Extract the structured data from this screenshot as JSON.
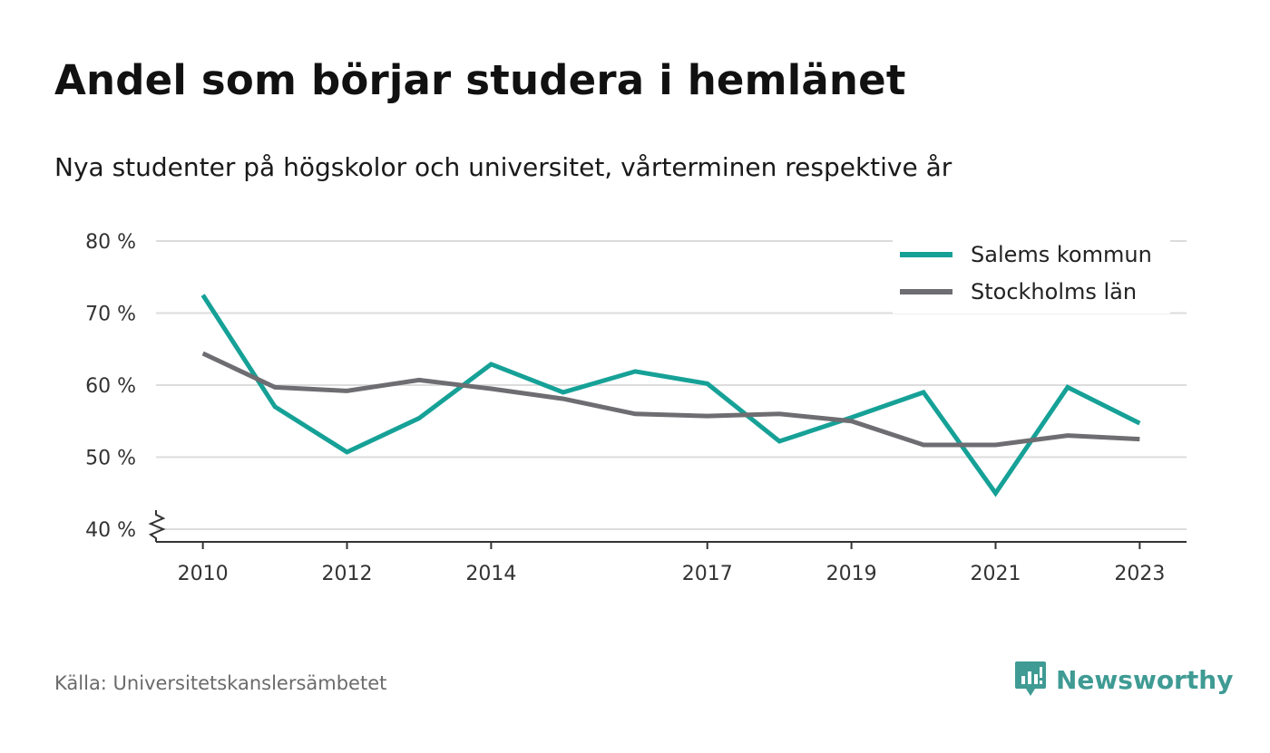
{
  "title": "Andel som börjar studera i hemlänet",
  "subtitle": "Nya studenter på högskolor och universitet, vårterminen respektive år",
  "source": "Källa: Universitetskanslersämbetet",
  "brand": {
    "name": "Newsworthy",
    "icon": "newsworthy-logo-icon",
    "color": "#3f9b94"
  },
  "chart_data": {
    "type": "line",
    "y_ticks": [
      {
        "value": 40,
        "label": "40 %"
      },
      {
        "value": 50,
        "label": "50 %"
      },
      {
        "value": 60,
        "label": "60 %"
      },
      {
        "value": 70,
        "label": "70 %"
      },
      {
        "value": 80,
        "label": "80 %"
      }
    ],
    "x_ticks": [
      {
        "value": 2010,
        "label": "2010"
      },
      {
        "value": 2012,
        "label": "2012"
      },
      {
        "value": 2014,
        "label": "2014"
      },
      {
        "value": 2017,
        "label": "2017"
      },
      {
        "value": 2019,
        "label": "2019"
      },
      {
        "value": 2021,
        "label": "2021"
      },
      {
        "value": 2023,
        "label": "2023"
      }
    ],
    "xlim": [
      2009.35,
      2023.65
    ],
    "ylim": [
      40,
      80
    ],
    "axis_break": true,
    "grid": "horizontal",
    "legend_position": "top-right",
    "x": [
      2010,
      2011,
      2012,
      2013,
      2014,
      2015,
      2016,
      2017,
      2018,
      2019,
      2020,
      2021,
      2022,
      2023
    ],
    "series": [
      {
        "name": "Salems kommun",
        "color": "#16a197",
        "values": [
          72.5,
          57.0,
          50.7,
          55.4,
          62.9,
          59.0,
          61.9,
          60.2,
          52.2,
          55.5,
          59.0,
          45.0,
          59.7,
          54.7
        ]
      },
      {
        "name": "Stockholms län",
        "color": "#6e6d72",
        "values": [
          64.4,
          59.7,
          59.2,
          60.7,
          59.5,
          58.1,
          56.0,
          55.7,
          56.0,
          55.0,
          51.7,
          51.7,
          53.0,
          52.5
        ]
      }
    ]
  }
}
